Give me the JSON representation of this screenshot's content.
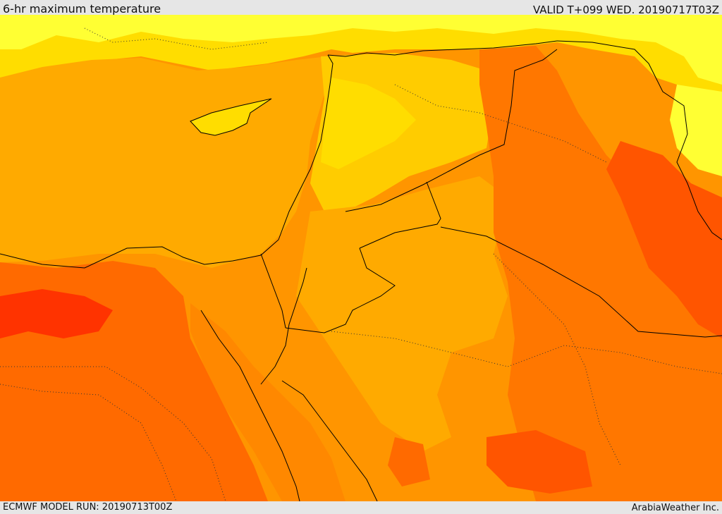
{
  "header": {
    "title": "6-hr maximum temperature",
    "valid": "VALID T+099 WED. 20190717T03Z"
  },
  "footer": {
    "model_run": "ECMWF MODEL RUN: 20190713T00Z",
    "credit": "ArabiaWeather Inc."
  },
  "colors": {
    "pale_yellow": "#ffff33",
    "yellow": "#ffdd00",
    "amber": "#ffbb00",
    "light_orange": "#ffaa00",
    "orange": "#ff8800",
    "dark_orange": "#ff5500",
    "red_orange": "#ff2a00",
    "border": "#000000"
  }
}
